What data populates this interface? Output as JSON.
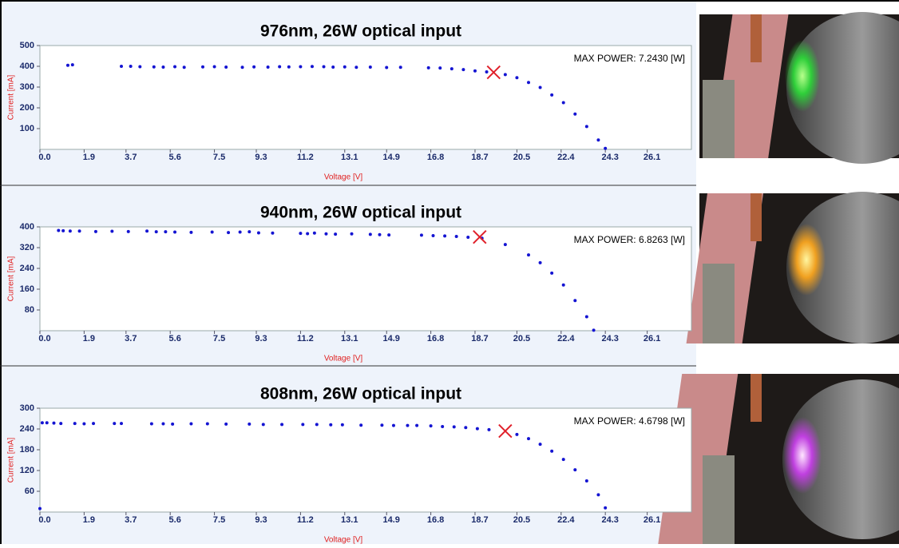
{
  "chart_data": [
    {
      "type": "scatter",
      "title": "976nm, 26W optical input",
      "x_label": "Voltage [V]",
      "y_label": "Current [mA]",
      "annotation": "MAX POWER: 7.2430 [W]",
      "color": "#1414d2",
      "marker_color": "#e0202a",
      "x": [
        1.2,
        1.4,
        3.5,
        3.9,
        4.3,
        4.9,
        5.3,
        5.8,
        6.2,
        7.0,
        7.5,
        8.0,
        8.7,
        9.2,
        9.8,
        10.3,
        10.7,
        11.2,
        11.7,
        12.2,
        12.6,
        13.1,
        13.6,
        14.2,
        14.9,
        15.5,
        16.7,
        17.2,
        17.7,
        18.2,
        18.7,
        19.2,
        20.0,
        20.5,
        21.0,
        21.5,
        22.0,
        22.5,
        23.0,
        23.5,
        24.0,
        24.3
      ],
      "values": [
        405,
        407,
        400,
        400,
        398,
        397,
        396,
        398,
        395,
        397,
        398,
        396,
        395,
        397,
        396,
        398,
        397,
        398,
        399,
        398,
        396,
        397,
        395,
        396,
        394,
        395,
        393,
        392,
        388,
        384,
        378,
        373,
        360,
        345,
        322,
        298,
        262,
        225,
        170,
        110,
        45,
        5
      ],
      "max_point": {
        "x": 19.5,
        "y": 371
      },
      "xlim": [
        0,
        28
      ],
      "xticks": [
        {
          "value": 0,
          "label": "0.0"
        },
        1.9,
        3.7,
        5.6,
        7.5,
        9.3,
        11.2,
        13.1,
        14.9,
        16.8,
        18.7,
        20.5,
        22.4,
        24.3,
        26.1
      ],
      "ylim": [
        0,
        500
      ],
      "yticks": [
        100,
        200,
        300,
        400,
        500
      ]
    },
    {
      "type": "scatter",
      "title": "940nm, 26W optical input",
      "x_label": "Voltage [V]",
      "y_label": "Current [mA]",
      "annotation": "MAX POWER: 6.8263 [W]",
      "color": "#1414d2",
      "marker_color": "#e0202a",
      "x": [
        0.8,
        1.0,
        1.3,
        1.7,
        2.4,
        3.1,
        3.8,
        4.6,
        5.0,
        5.4,
        5.8,
        6.5,
        7.4,
        8.1,
        8.6,
        9.0,
        9.4,
        10.0,
        11.2,
        11.5,
        11.8,
        12.3,
        12.7,
        13.4,
        14.2,
        14.6,
        15.0,
        16.4,
        16.9,
        17.4,
        17.9,
        18.4,
        19.0,
        20.0,
        21.0,
        21.5,
        22.0,
        22.5,
        23.0,
        23.5,
        23.8
      ],
      "values": [
        386,
        385,
        384,
        384,
        382,
        383,
        382,
        384,
        381,
        381,
        380,
        379,
        380,
        378,
        380,
        381,
        377,
        376,
        375,
        374,
        376,
        373,
        372,
        373,
        371,
        370,
        369,
        368,
        366,
        365,
        363,
        360,
        356,
        332,
        292,
        262,
        222,
        176,
        116,
        54,
        2
      ],
      "max_point": {
        "x": 18.9,
        "y": 361
      },
      "xlim": [
        0,
        28
      ],
      "xticks": [
        {
          "value": 0,
          "label": "0.0"
        },
        1.9,
        3.7,
        5.6,
        7.5,
        9.3,
        11.2,
        13.1,
        14.9,
        16.8,
        18.7,
        20.5,
        22.4,
        24.3,
        26.1
      ],
      "ylim": [
        0,
        400
      ],
      "yticks": [
        80,
        160,
        240,
        320,
        400
      ]
    },
    {
      "type": "scatter",
      "title": "808nm, 26W optical input",
      "x_label": "Voltage [V]",
      "y_label": "Current [mA]",
      "annotation": "MAX POWER: 4.6798 [W]",
      "color": "#1414d2",
      "marker_color": "#e0202a",
      "x": [
        0.1,
        0.3,
        0.6,
        0.9,
        1.5,
        1.9,
        2.3,
        3.2,
        3.5,
        4.8,
        5.3,
        5.7,
        6.5,
        7.2,
        8.0,
        9.0,
        9.6,
        10.4,
        11.3,
        11.9,
        12.5,
        13.0,
        13.8,
        14.7,
        15.2,
        15.8,
        16.2,
        16.8,
        17.3,
        17.8,
        18.3,
        18.8,
        19.3,
        20.5,
        21.0,
        21.5,
        22.0,
        22.5,
        23.0,
        23.5,
        24.0,
        24.3,
        0.0
      ],
      "values": [
        258,
        258,
        257,
        256,
        256,
        255,
        256,
        256,
        256,
        255,
        255,
        254,
        255,
        255,
        254,
        254,
        253,
        253,
        253,
        253,
        252,
        252,
        251,
        251,
        250,
        250,
        250,
        249,
        247,
        246,
        244,
        241,
        238,
        224,
        212,
        196,
        176,
        152,
        122,
        90,
        50,
        12,
        10
      ],
      "max_point": {
        "x": 20.0,
        "y": 234
      },
      "xlim": [
        0,
        28
      ],
      "xticks": [
        {
          "value": 0,
          "label": "0.0"
        },
        1.9,
        3.7,
        5.6,
        7.5,
        9.3,
        11.2,
        13.1,
        14.9,
        16.8,
        18.7,
        20.5,
        22.4,
        24.3,
        26.1
      ],
      "ylim": [
        0,
        300
      ],
      "yticks": [
        60,
        120,
        180,
        240,
        300
      ]
    }
  ]
}
